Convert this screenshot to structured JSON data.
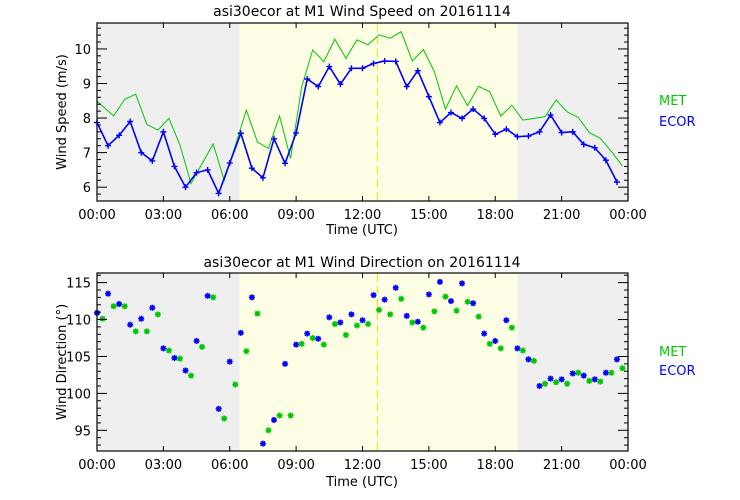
{
  "chart_data": [
    {
      "type": "line",
      "title": "asi30ecor at M1 Wind Speed on 20161114",
      "xlabel": "Time (UTC)",
      "ylabel": "Wind Speed (m/s)",
      "xlim": [
        0,
        24
      ],
      "ylim": [
        5.6,
        10.75
      ],
      "x_tick_labels": [
        "00:00",
        "03:00",
        "06:00",
        "09:00",
        "12:00",
        "15:00",
        "18:00",
        "21:00",
        "00:00"
      ],
      "y_ticks": [
        6,
        7,
        8,
        9,
        10
      ],
      "night_shading_hours": [
        [
          0,
          6.45
        ],
        [
          19.0,
          24
        ]
      ],
      "day_shading_hours": [
        6.45,
        19.0
      ],
      "marker_line_hour": 12.67,
      "legend_position": "right",
      "series": [
        {
          "name": "MET",
          "color": "#00c800",
          "x": [
            0,
            0.75,
            1.25,
            1.75,
            2.25,
            2.75,
            3.25,
            3.75,
            4.25,
            4.75,
            5.25,
            5.75,
            6.25,
            6.75,
            7.25,
            7.75,
            8.25,
            8.75,
            9.25,
            9.75,
            10.25,
            10.75,
            11.25,
            11.75,
            12.25,
            12.75,
            13.25,
            13.75,
            14.25,
            14.75,
            15.25,
            15.75,
            16.25,
            16.75,
            17.25,
            17.75,
            18.25,
            18.75,
            19.25,
            19.75,
            20.25,
            20.75,
            21.25,
            21.75,
            22.25,
            22.75,
            23.25,
            23.75
          ],
          "values": [
            8.49,
            8.06,
            8.54,
            8.69,
            7.82,
            7.65,
            7.99,
            7.22,
            6.1,
            6.69,
            7.25,
            6.2,
            7.2,
            8.23,
            7.31,
            7.12,
            8.06,
            6.83,
            8.9,
            9.97,
            9.63,
            10.28,
            9.73,
            10.26,
            10.12,
            10.41,
            10.31,
            10.5,
            9.65,
            9.98,
            9.34,
            8.26,
            8.93,
            8.36,
            8.92,
            8.76,
            8.06,
            8.37,
            7.94,
            7.99,
            8.04,
            8.52,
            8.18,
            8.02,
            7.58,
            7.41,
            7.03,
            6.61
          ]
        },
        {
          "name": "ECOR",
          "color": "#0000ff",
          "x": [
            0,
            0.5,
            1,
            1.5,
            2,
            2.5,
            3,
            3.5,
            4,
            4.5,
            5,
            5.5,
            6,
            6.5,
            7,
            7.5,
            8,
            8.5,
            9,
            9.5,
            10,
            10.5,
            11,
            11.5,
            12,
            12.5,
            13,
            13.5,
            14,
            14.5,
            15,
            15.5,
            16,
            16.5,
            17,
            17.5,
            18,
            18.5,
            19,
            19.5,
            20,
            20.5,
            21,
            21.5,
            22,
            22.5,
            23,
            23.5
          ],
          "values": [
            7.87,
            7.2,
            7.5,
            7.9,
            7.0,
            6.76,
            7.6,
            6.6,
            6.0,
            6.42,
            6.5,
            5.82,
            6.7,
            7.56,
            6.55,
            6.27,
            7.4,
            6.69,
            7.57,
            9.13,
            8.91,
            9.49,
            8.98,
            9.44,
            9.44,
            9.58,
            9.65,
            9.64,
            8.91,
            9.37,
            8.62,
            7.87,
            8.16,
            7.99,
            8.26,
            7.99,
            7.53,
            7.68,
            7.46,
            7.48,
            7.6,
            8.09,
            7.58,
            7.6,
            7.24,
            7.14,
            6.78,
            6.15
          ]
        }
      ]
    },
    {
      "type": "scatter",
      "title": "asi30ecor at M1 Wind Direction on 20161114",
      "xlabel": "Time (UTC)",
      "ylabel": "Wind Direction (°)",
      "xlim": [
        0,
        24
      ],
      "ylim": [
        92.2,
        116.3
      ],
      "x_tick_labels": [
        "00:00",
        "03:00",
        "06:00",
        "09:00",
        "12:00",
        "15:00",
        "18:00",
        "21:00",
        "00:00"
      ],
      "y_ticks": [
        95,
        100,
        105,
        110,
        115
      ],
      "night_shading_hours": [
        [
          0,
          6.45
        ],
        [
          19.0,
          24
        ]
      ],
      "day_shading_hours": [
        6.45,
        19.0
      ],
      "marker_line_hour": 12.67,
      "legend_position": "right",
      "series": [
        {
          "name": "MET",
          "color": "#00c800",
          "x": [
            0.25,
            0.75,
            1.25,
            1.75,
            2.25,
            2.75,
            3.25,
            3.75,
            4.25,
            4.75,
            5.25,
            5.75,
            6.25,
            6.75,
            7.25,
            7.75,
            8.25,
            8.75,
            9.25,
            9.75,
            10.25,
            10.75,
            11.25,
            11.75,
            12.25,
            12.75,
            13.25,
            13.75,
            14.25,
            14.75,
            15.25,
            15.75,
            16.25,
            16.75,
            17.25,
            17.75,
            18.25,
            18.75,
            19.25,
            19.75,
            20.25,
            20.75,
            21.25,
            21.75,
            22.25,
            22.75,
            23.25,
            23.75
          ],
          "values": [
            110.1,
            111.8,
            111.8,
            108.4,
            108.4,
            110.7,
            105.8,
            104.7,
            102.4,
            106.3,
            113.0,
            96.6,
            101.2,
            105.7,
            110.8,
            95.0,
            97.0,
            97.0,
            106.7,
            107.5,
            106.6,
            109.4,
            107.9,
            109.2,
            109.4,
            111.3,
            110.7,
            112.8,
            109.6,
            108.9,
            111.1,
            113.1,
            111.2,
            112.4,
            110.4,
            106.7,
            106.1,
            108.9,
            105.8,
            104.4,
            101.3,
            101.5,
            101.3,
            102.8,
            101.7,
            101.6,
            102.8,
            103.4
          ]
        },
        {
          "name": "ECOR",
          "color": "#0000ff",
          "x": [
            0,
            0.5,
            1,
            1.5,
            2,
            2.5,
            3,
            3.5,
            4,
            4.5,
            5,
            5.5,
            6,
            6.5,
            7,
            7.5,
            8,
            8.5,
            9,
            9.5,
            10,
            10.5,
            11,
            11.5,
            12,
            12.5,
            13,
            13.5,
            14,
            14.5,
            15,
            15.5,
            16,
            16.5,
            17,
            17.5,
            18,
            18.5,
            19,
            19.5,
            20,
            20.5,
            21,
            21.5,
            22,
            22.5,
            23,
            23.5
          ],
          "values": [
            110.9,
            113.5,
            112.1,
            109.3,
            110.1,
            111.6,
            106.1,
            104.8,
            103.1,
            107.1,
            113.2,
            97.9,
            104.3,
            108.2,
            113.0,
            93.2,
            96.4,
            104.0,
            106.6,
            108.1,
            107.4,
            110.3,
            109.6,
            110.7,
            109.9,
            113.3,
            112.7,
            114.3,
            110.5,
            109.7,
            113.4,
            115.1,
            112.5,
            114.9,
            112.2,
            108.1,
            107.1,
            109.9,
            106.1,
            104.6,
            101.0,
            102.0,
            101.9,
            102.7,
            102.4,
            101.9,
            102.8,
            104.6
          ]
        }
      ]
    }
  ],
  "colors": {
    "night": "#efefef",
    "day": "#fefee4",
    "marker_line": "#f0e000",
    "axis": "#000000"
  }
}
